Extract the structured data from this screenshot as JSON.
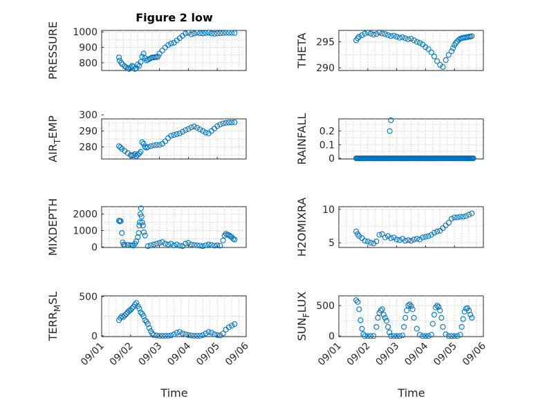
{
  "figure": {
    "title": "Figure 2 low",
    "marker_color": "#0072BD"
  },
  "chart_data": [
    {
      "type": "scatter",
      "title": "Figure 2 low",
      "ylabel": "PRESSURE",
      "xlabel": "",
      "ylim": [
        750,
        1010
      ],
      "yticks": [
        800,
        900,
        1000
      ],
      "x_days": [
        0.6,
        0.62,
        0.68,
        0.72,
        0.8,
        0.85,
        0.9,
        0.95,
        1.0,
        1.05,
        1.1,
        1.15,
        1.2,
        1.25,
        1.3,
        1.35,
        1.4,
        1.45,
        1.5,
        1.55,
        1.6,
        1.65,
        1.7,
        1.75,
        1.8,
        1.85,
        1.9,
        1.95,
        2.0,
        2.1,
        2.2,
        2.3,
        2.4,
        2.5,
        2.6,
        2.7,
        2.8,
        2.9,
        3.0,
        3.1,
        3.2,
        3.3,
        3.4,
        3.5,
        3.6,
        3.7,
        3.8,
        3.9,
        4.0,
        4.1,
        4.2,
        4.3,
        4.4,
        4.5,
        4.6
      ],
      "values": [
        835,
        815,
        800,
        790,
        778,
        770,
        765,
        760,
        770,
        780,
        775,
        760,
        765,
        790,
        780,
        805,
        840,
        860,
        830,
        815,
        820,
        825,
        830,
        835,
        835,
        838,
        836,
        840,
        860,
        880,
        900,
        915,
        925,
        930,
        945,
        960,
        975,
        990,
        995,
        985,
        990,
        995,
        992,
        990,
        993,
        995,
        990,
        988,
        990,
        992,
        993,
        994,
        995,
        994,
        993
      ]
    },
    {
      "type": "scatter",
      "ylabel": "THETA",
      "ylim": [
        289.5,
        297.2
      ],
      "yticks": [
        290,
        295
      ],
      "x_days": [
        0.6,
        0.65,
        0.7,
        0.8,
        0.9,
        1.0,
        1.1,
        1.2,
        1.3,
        1.4,
        1.5,
        1.6,
        1.7,
        1.8,
        1.9,
        2.0,
        2.1,
        2.2,
        2.3,
        2.4,
        2.5,
        2.6,
        2.7,
        2.8,
        2.9,
        3.0,
        3.1,
        3.2,
        3.3,
        3.4,
        3.5,
        3.6,
        3.7,
        3.8,
        3.9,
        3.95,
        4.0,
        4.05,
        4.1,
        4.15,
        4.2,
        4.25,
        4.3,
        4.35,
        4.4,
        4.45,
        4.5,
        4.55,
        4.6
      ],
      "values": [
        295.3,
        295.7,
        296.0,
        296.3,
        296.6,
        296.8,
        296.6,
        296.4,
        296.5,
        296.8,
        296.6,
        296.5,
        296.3,
        296.1,
        296.2,
        296.0,
        295.8,
        295.9,
        295.7,
        295.5,
        295.6,
        295.3,
        295.0,
        294.8,
        294.5,
        294.0,
        293.6,
        293.0,
        292.2,
        291.3,
        290.6,
        290.2,
        291.5,
        292.5,
        293.2,
        293.8,
        294.4,
        294.8,
        295.1,
        295.4,
        295.6,
        295.7,
        295.8,
        295.8,
        295.9,
        295.9,
        296.0,
        296.0,
        296.1
      ]
    },
    {
      "type": "scatter",
      "ylabel": "AIR_TEMP",
      "ylim": [
        272.5,
        297.5
      ],
      "yticks": [
        280,
        290,
        300
      ],
      "x_days": [
        0.6,
        0.65,
        0.7,
        0.8,
        0.9,
        1.0,
        1.05,
        1.1,
        1.15,
        1.2,
        1.25,
        1.3,
        1.35,
        1.4,
        1.45,
        1.5,
        1.55,
        1.6,
        1.7,
        1.8,
        1.9,
        2.0,
        2.1,
        2.2,
        2.3,
        2.4,
        2.5,
        2.6,
        2.7,
        2.8,
        2.9,
        3.0,
        3.1,
        3.2,
        3.3,
        3.4,
        3.5,
        3.6,
        3.7,
        3.8,
        3.9,
        4.0,
        4.1,
        4.2,
        4.3,
        4.4,
        4.5,
        4.6
      ],
      "values": [
        280.5,
        279.8,
        278.8,
        277.5,
        276.2,
        275.0,
        274.6,
        275.0,
        275.6,
        274.3,
        275.2,
        276.0,
        277.0,
        283.0,
        282.0,
        280.0,
        279.5,
        280.0,
        280.5,
        281.0,
        281.2,
        281.3,
        282.0,
        283.5,
        285.5,
        287.0,
        287.5,
        288.0,
        288.5,
        289.5,
        290.5,
        291.2,
        292.2,
        292.8,
        292.0,
        291.0,
        290.0,
        289.0,
        288.5,
        290.0,
        291.5,
        293.0,
        294.0,
        294.7,
        295.0,
        295.2,
        295.3,
        295.4
      ]
    },
    {
      "type": "scatter",
      "ylabel": "RAINFALL",
      "ylim": [
        -0.005,
        0.29
      ],
      "yticks": [
        0,
        0.1,
        0.2
      ],
      "ytick_labels": [
        "0",
        "0.1",
        "0.2"
      ],
      "x_days": [
        0.6,
        4.65,
        1.76,
        1.8
      ],
      "values": [
        0,
        0,
        0.2,
        0.28
      ],
      "baseline": {
        "x_from": 0.6,
        "x_to": 4.65,
        "value": 0
      }
    },
    {
      "type": "scatter",
      "ylabel": "MIXDEPTH",
      "ylim": [
        -30,
        2450
      ],
      "yticks": [
        0,
        1000,
        2000
      ],
      "x_days": [
        0.6,
        0.63,
        0.66,
        0.7,
        0.73,
        0.76,
        0.8,
        0.9,
        1.0,
        1.05,
        1.1,
        1.15,
        1.2,
        1.25,
        1.28,
        1.3,
        1.32,
        1.34,
        1.36,
        1.38,
        1.4,
        1.43,
        1.46,
        1.5,
        1.6,
        1.7,
        1.8,
        1.9,
        2.0,
        2.1,
        2.2,
        2.3,
        2.4,
        2.5,
        2.6,
        2.7,
        2.8,
        2.9,
        3.0,
        3.1,
        3.2,
        3.3,
        3.4,
        3.5,
        3.6,
        3.7,
        3.8,
        3.9,
        4.0,
        4.1,
        4.2,
        4.25,
        4.3,
        4.35,
        4.4,
        4.45,
        4.5,
        4.55,
        4.6
      ],
      "values": [
        1600,
        1550,
        1580,
        850,
        280,
        150,
        120,
        130,
        110,
        100,
        80,
        200,
        350,
        600,
        850,
        1300,
        1500,
        2000,
        2350,
        1850,
        1500,
        1300,
        900,
        700,
        50,
        100,
        150,
        200,
        250,
        300,
        200,
        150,
        200,
        100,
        150,
        80,
        50,
        200,
        250,
        150,
        120,
        100,
        80,
        50,
        100,
        150,
        120,
        80,
        100,
        80,
        400,
        700,
        800,
        750,
        720,
        650,
        600,
        500,
        450
      ]
    },
    {
      "type": "scatter",
      "ylabel": "H2OMIXRA",
      "ylim": [
        4.3,
        10.4
      ],
      "yticks": [
        5,
        10
      ],
      "x_days": [
        0.6,
        0.65,
        0.7,
        0.8,
        0.9,
        1.0,
        1.1,
        1.2,
        1.3,
        1.4,
        1.5,
        1.6,
        1.7,
        1.8,
        1.9,
        2.0,
        2.1,
        2.2,
        2.3,
        2.4,
        2.5,
        2.6,
        2.7,
        2.8,
        2.9,
        3.0,
        3.1,
        3.2,
        3.3,
        3.4,
        3.5,
        3.6,
        3.7,
        3.8,
        3.9,
        4.0,
        4.1,
        4.2,
        4.3,
        4.4,
        4.5,
        4.6
      ],
      "values": [
        6.7,
        6.3,
        6.0,
        5.7,
        5.3,
        5.2,
        5.0,
        4.9,
        5.2,
        6.2,
        6.3,
        5.8,
        6.0,
        5.7,
        5.8,
        5.5,
        5.4,
        5.6,
        5.3,
        5.4,
        5.3,
        5.5,
        5.6,
        5.5,
        5.8,
        5.9,
        6.0,
        6.2,
        6.5,
        6.7,
        6.8,
        7.2,
        7.6,
        8.0,
        8.6,
        8.8,
        8.8,
        8.9,
        8.9,
        9.0,
        9.2,
        9.4
      ]
    },
    {
      "type": "scatter",
      "ylabel": "TERR_MSL",
      "ylim": [
        -10,
        510
      ],
      "yticks": [
        0,
        500
      ],
      "x_days": [
        0.6,
        0.65,
        0.7,
        0.75,
        0.8,
        0.85,
        0.9,
        0.95,
        1.0,
        1.05,
        1.1,
        1.15,
        1.2,
        1.25,
        1.3,
        1.35,
        1.4,
        1.45,
        1.5,
        1.55,
        1.6,
        1.65,
        1.7,
        1.75,
        1.8,
        1.9,
        2.0,
        2.1,
        2.2,
        2.3,
        2.4,
        2.5,
        2.6,
        2.7,
        2.8,
        2.9,
        3.0,
        3.1,
        3.2,
        3.3,
        3.4,
        3.5,
        3.6,
        3.7,
        3.8,
        3.9,
        4.0,
        4.1,
        4.2,
        4.3,
        4.4,
        4.5,
        4.6
      ],
      "values": [
        200,
        230,
        250,
        240,
        260,
        280,
        300,
        320,
        330,
        350,
        370,
        400,
        420,
        380,
        350,
        300,
        280,
        250,
        200,
        180,
        150,
        100,
        60,
        30,
        10,
        5,
        0,
        0,
        0,
        0,
        5,
        20,
        40,
        50,
        30,
        20,
        10,
        5,
        0,
        0,
        0,
        10,
        30,
        50,
        40,
        20,
        10,
        5,
        30,
        80,
        110,
        130,
        150
      ]
    },
    {
      "type": "scatter",
      "ylabel": "SUN_FLUX",
      "ylim": [
        -10,
        660
      ],
      "yticks": [
        0,
        500
      ],
      "x_days": [
        0.6,
        0.65,
        0.7,
        0.75,
        0.8,
        0.85,
        0.9,
        1.0,
        1.1,
        1.2,
        1.3,
        1.35,
        1.4,
        1.45,
        1.5,
        1.55,
        1.6,
        1.65,
        1.7,
        1.75,
        1.8,
        1.9,
        2.0,
        2.1,
        2.2,
        2.25,
        2.3,
        2.35,
        2.4,
        2.45,
        2.5,
        2.55,
        2.6,
        2.7,
        2.8,
        2.9,
        3.0,
        3.1,
        3.2,
        3.25,
        3.3,
        3.35,
        3.4,
        3.45,
        3.5,
        3.55,
        3.6,
        3.7,
        3.8,
        3.9,
        4.0,
        4.1,
        4.2,
        4.25,
        4.3,
        4.35,
        4.4,
        4.45,
        4.5,
        4.55,
        4.6
      ],
      "values": [
        590,
        560,
        440,
        260,
        120,
        30,
        0,
        0,
        0,
        0,
        150,
        300,
        380,
        420,
        440,
        350,
        300,
        250,
        150,
        60,
        0,
        0,
        0,
        0,
        10,
        150,
        300,
        420,
        500,
        520,
        490,
        440,
        300,
        120,
        20,
        0,
        0,
        0,
        20,
        200,
        350,
        470,
        500,
        480,
        420,
        300,
        150,
        30,
        0,
        0,
        0,
        0,
        20,
        150,
        280,
        400,
        450,
        460,
        420,
        350,
        300
      ]
    }
  ],
  "x_axis": {
    "label": "Time",
    "tick_labels": [
      "09/01",
      "09/02",
      "09/03",
      "09/04",
      "09/05",
      "09/06"
    ],
    "tick_days": [
      0,
      1,
      2,
      3,
      4,
      5
    ]
  }
}
